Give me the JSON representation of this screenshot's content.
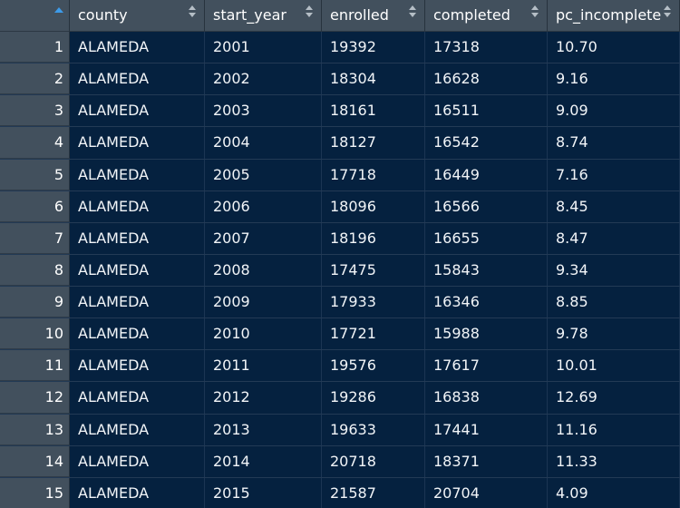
{
  "table": {
    "columns": [
      {
        "label": "",
        "sort": "asc"
      },
      {
        "label": "county"
      },
      {
        "label": "start_year"
      },
      {
        "label": "enrolled"
      },
      {
        "label": "completed"
      },
      {
        "label": "pc_incomplete"
      }
    ],
    "rows": [
      {
        "n": "1",
        "county": "ALAMEDA",
        "start_year": "2001",
        "enrolled": "19392",
        "completed": "17318",
        "pc_incomplete": "10.70"
      },
      {
        "n": "2",
        "county": "ALAMEDA",
        "start_year": "2002",
        "enrolled": "18304",
        "completed": "16628",
        "pc_incomplete": "9.16"
      },
      {
        "n": "3",
        "county": "ALAMEDA",
        "start_year": "2003",
        "enrolled": "18161",
        "completed": "16511",
        "pc_incomplete": "9.09"
      },
      {
        "n": "4",
        "county": "ALAMEDA",
        "start_year": "2004",
        "enrolled": "18127",
        "completed": "16542",
        "pc_incomplete": "8.74"
      },
      {
        "n": "5",
        "county": "ALAMEDA",
        "start_year": "2005",
        "enrolled": "17718",
        "completed": "16449",
        "pc_incomplete": "7.16"
      },
      {
        "n": "6",
        "county": "ALAMEDA",
        "start_year": "2006",
        "enrolled": "18096",
        "completed": "16566",
        "pc_incomplete": "8.45"
      },
      {
        "n": "7",
        "county": "ALAMEDA",
        "start_year": "2007",
        "enrolled": "18196",
        "completed": "16655",
        "pc_incomplete": "8.47"
      },
      {
        "n": "8",
        "county": "ALAMEDA",
        "start_year": "2008",
        "enrolled": "17475",
        "completed": "15843",
        "pc_incomplete": "9.34"
      },
      {
        "n": "9",
        "county": "ALAMEDA",
        "start_year": "2009",
        "enrolled": "17933",
        "completed": "16346",
        "pc_incomplete": "8.85"
      },
      {
        "n": "10",
        "county": "ALAMEDA",
        "start_year": "2010",
        "enrolled": "17721",
        "completed": "15988",
        "pc_incomplete": "9.78"
      },
      {
        "n": "11",
        "county": "ALAMEDA",
        "start_year": "2011",
        "enrolled": "19576",
        "completed": "17617",
        "pc_incomplete": "10.01"
      },
      {
        "n": "12",
        "county": "ALAMEDA",
        "start_year": "2012",
        "enrolled": "19286",
        "completed": "16838",
        "pc_incomplete": "12.69"
      },
      {
        "n": "13",
        "county": "ALAMEDA",
        "start_year": "2013",
        "enrolled": "19633",
        "completed": "17441",
        "pc_incomplete": "11.16"
      },
      {
        "n": "14",
        "county": "ALAMEDA",
        "start_year": "2014",
        "enrolled": "20718",
        "completed": "18371",
        "pc_incomplete": "11.33"
      },
      {
        "n": "15",
        "county": "ALAMEDA",
        "start_year": "2015",
        "enrolled": "21587",
        "completed": "20704",
        "pc_incomplete": "4.09"
      }
    ]
  },
  "colors": {
    "header_bg": "#42505d",
    "body_bg": "#05213f",
    "sort_active": "#3d9be9"
  }
}
